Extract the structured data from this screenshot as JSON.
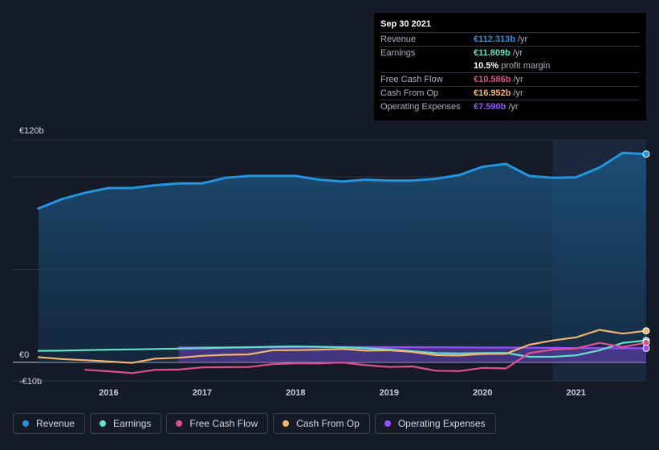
{
  "tooltip": {
    "date": "Sep 30 2021",
    "rows": [
      {
        "label": "Revenue",
        "value": "€112.313b",
        "unit": "/yr",
        "color": "#2394df"
      },
      {
        "label": "Earnings",
        "value": "€11.809b",
        "unit": "/yr",
        "color": "#5fe3c8"
      },
      {
        "label": "",
        "value": "10.5%",
        "unit": "profit margin",
        "color": "#ffffff"
      },
      {
        "label": "Free Cash Flow",
        "value": "€10.586b",
        "unit": "/yr",
        "color": "#e04f8e"
      },
      {
        "label": "Cash From Op",
        "value": "€16.952b",
        "unit": "/yr",
        "color": "#f0b46e"
      },
      {
        "label": "Operating Expenses",
        "value": "€7.590b",
        "unit": "/yr",
        "color": "#9b4dff"
      }
    ]
  },
  "legend": [
    {
      "label": "Revenue",
      "color": "#2394df"
    },
    {
      "label": "Earnings",
      "color": "#5fe3c8"
    },
    {
      "label": "Free Cash Flow",
      "color": "#e04f8e"
    },
    {
      "label": "Cash From Op",
      "color": "#f0b46e"
    },
    {
      "label": "Operating Expenses",
      "color": "#9b4dff"
    }
  ],
  "chart_data": {
    "type": "area",
    "y_labels": [
      {
        "value": 120,
        "text": "€120b"
      },
      {
        "value": 0,
        "text": "€0"
      },
      {
        "value": -10,
        "text": "-€10b"
      }
    ],
    "ylim": [
      -10,
      120
    ],
    "xlim": [
      2015.25,
      2021.75
    ],
    "x_ticks": [
      {
        "value": 2016,
        "text": "2016"
      },
      {
        "value": 2017,
        "text": "2017"
      },
      {
        "value": 2018,
        "text": "2018"
      },
      {
        "value": 2019,
        "text": "2019"
      },
      {
        "value": 2020,
        "text": "2020"
      },
      {
        "value": 2021,
        "text": "2021"
      }
    ],
    "highlight_start": 2020.75,
    "series": [
      {
        "name": "Revenue",
        "color": "#2394df",
        "fill": true,
        "x": [
          2015.25,
          2015.5,
          2015.75,
          2016.0,
          2016.25,
          2016.5,
          2016.75,
          2017.0,
          2017.25,
          2017.5,
          2017.75,
          2018.0,
          2018.25,
          2018.5,
          2018.75,
          2019.0,
          2019.25,
          2019.5,
          2019.75,
          2020.0,
          2020.25,
          2020.5,
          2020.75,
          2021.0,
          2021.25,
          2021.5,
          2021.75
        ],
        "y": [
          83,
          88,
          91.5,
          94,
          94,
          95.5,
          96.5,
          96.5,
          99.5,
          100.5,
          100.5,
          100.5,
          98.5,
          97.5,
          98.5,
          98,
          98,
          99,
          101,
          105.5,
          107,
          100.5,
          99.5,
          99.8,
          105,
          113,
          112.3
        ]
      },
      {
        "name": "Earnings",
        "color": "#5fe3c8",
        "fill": false,
        "x": [
          2015.25,
          2015.5,
          2015.75,
          2016.0,
          2016.25,
          2016.5,
          2016.75,
          2017.0,
          2017.25,
          2017.5,
          2017.75,
          2018.0,
          2018.25,
          2018.5,
          2018.75,
          2019.0,
          2019.25,
          2019.5,
          2019.75,
          2020.0,
          2020.25,
          2020.5,
          2020.75,
          2021.0,
          2021.25,
          2021.5,
          2021.75
        ],
        "y": [
          6.2,
          6.3,
          6.6,
          6.8,
          7,
          7.2,
          7.4,
          7.6,
          7.9,
          8.1,
          8.4,
          8.6,
          8.4,
          8.1,
          7.6,
          7,
          6,
          5,
          4.8,
          5,
          5.1,
          3,
          3,
          3.8,
          6.5,
          10.5,
          11.8
        ]
      },
      {
        "name": "Free Cash Flow",
        "color": "#e04f8e",
        "fill": false,
        "x": [
          2015.75,
          2016.0,
          2016.25,
          2016.5,
          2016.75,
          2017.0,
          2017.25,
          2017.5,
          2017.75,
          2018.0,
          2018.25,
          2018.5,
          2018.75,
          2019.0,
          2019.25,
          2019.5,
          2019.75,
          2020.0,
          2020.25,
          2020.5,
          2020.75,
          2021.0,
          2021.25,
          2021.5,
          2021.75
        ],
        "y": [
          -4,
          -4.8,
          -5.8,
          -4,
          -3.9,
          -2.7,
          -2.6,
          -2.5,
          -1,
          -0.5,
          -0.6,
          -0.1,
          -1.5,
          -2.5,
          -2.2,
          -4.5,
          -4.7,
          -3,
          -3.3,
          5,
          6.8,
          7.5,
          10.5,
          8.3,
          10.6
        ]
      },
      {
        "name": "Cash From Op",
        "color": "#f0b46e",
        "fill": false,
        "x": [
          2015.25,
          2015.5,
          2015.75,
          2016.0,
          2016.25,
          2016.5,
          2016.75,
          2017.0,
          2017.25,
          2017.5,
          2017.75,
          2018.0,
          2018.25,
          2018.5,
          2018.75,
          2019.0,
          2019.25,
          2019.5,
          2019.75,
          2020.0,
          2020.25,
          2020.5,
          2020.75,
          2021.0,
          2021.25,
          2021.5,
          2021.75
        ],
        "y": [
          2.8,
          1.8,
          1.2,
          0.5,
          -0.3,
          2,
          2.5,
          3.5,
          4.1,
          4.3,
          6.5,
          6.6,
          6.8,
          7.2,
          6.3,
          6.5,
          5.6,
          3.9,
          3.7,
          4.5,
          4.6,
          9.5,
          11.8,
          13.5,
          17.5,
          15.5,
          17
        ]
      },
      {
        "name": "Operating Expenses",
        "color": "#9b4dff",
        "fill": true,
        "x": [
          2016.75,
          2017.0,
          2017.25,
          2017.5,
          2017.75,
          2018.0,
          2018.25,
          2018.5,
          2018.75,
          2019.0,
          2019.25,
          2019.5,
          2019.75,
          2020.0,
          2020.25,
          2020.5,
          2020.75,
          2021.0,
          2021.25,
          2021.5,
          2021.75
        ],
        "y": [
          8,
          8.1,
          8.1,
          8.2,
          8.2,
          8.3,
          8.3,
          8.3,
          8.3,
          8.2,
          8.2,
          8.1,
          8.1,
          8,
          8,
          7.9,
          7.8,
          7.7,
          7.7,
          7.6,
          7.6
        ]
      }
    ]
  }
}
